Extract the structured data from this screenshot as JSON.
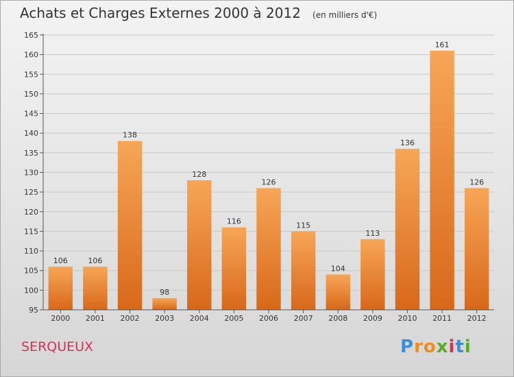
{
  "header": {
    "title": "Achats et Charges Externes 2000 à 2012",
    "subtitle": "(en milliers d'€)"
  },
  "footer": {
    "commune": "SERQUEUX",
    "logo_letters": [
      "P",
      "r",
      "o",
      "x",
      "i",
      "t",
      "i"
    ],
    "logo_colors": [
      "#3a8fd8",
      "#f28b1e",
      "#f28b1e",
      "#5aaa2a",
      "#d43355",
      "#3a8fd8",
      "#5aaa2a"
    ]
  },
  "colors": {
    "bar_light": "#f7a657",
    "bar_dark": "#d8681a",
    "grid": "#c8c8c8",
    "axis": "#555555",
    "text": "#333333"
  },
  "chart_data": {
    "type": "bar",
    "categories": [
      "2000",
      "2001",
      "2002",
      "2003",
      "2004",
      "2005",
      "2006",
      "2007",
      "2008",
      "2009",
      "2010",
      "2011",
      "2012"
    ],
    "values": [
      106,
      106,
      138,
      98,
      128,
      116,
      126,
      115,
      104,
      113,
      136,
      161,
      126
    ],
    "ylim": [
      95,
      165
    ],
    "yticks": [
      95,
      100,
      105,
      110,
      115,
      120,
      125,
      130,
      135,
      140,
      145,
      150,
      155,
      160,
      165
    ],
    "grid": true,
    "legend": "none"
  }
}
